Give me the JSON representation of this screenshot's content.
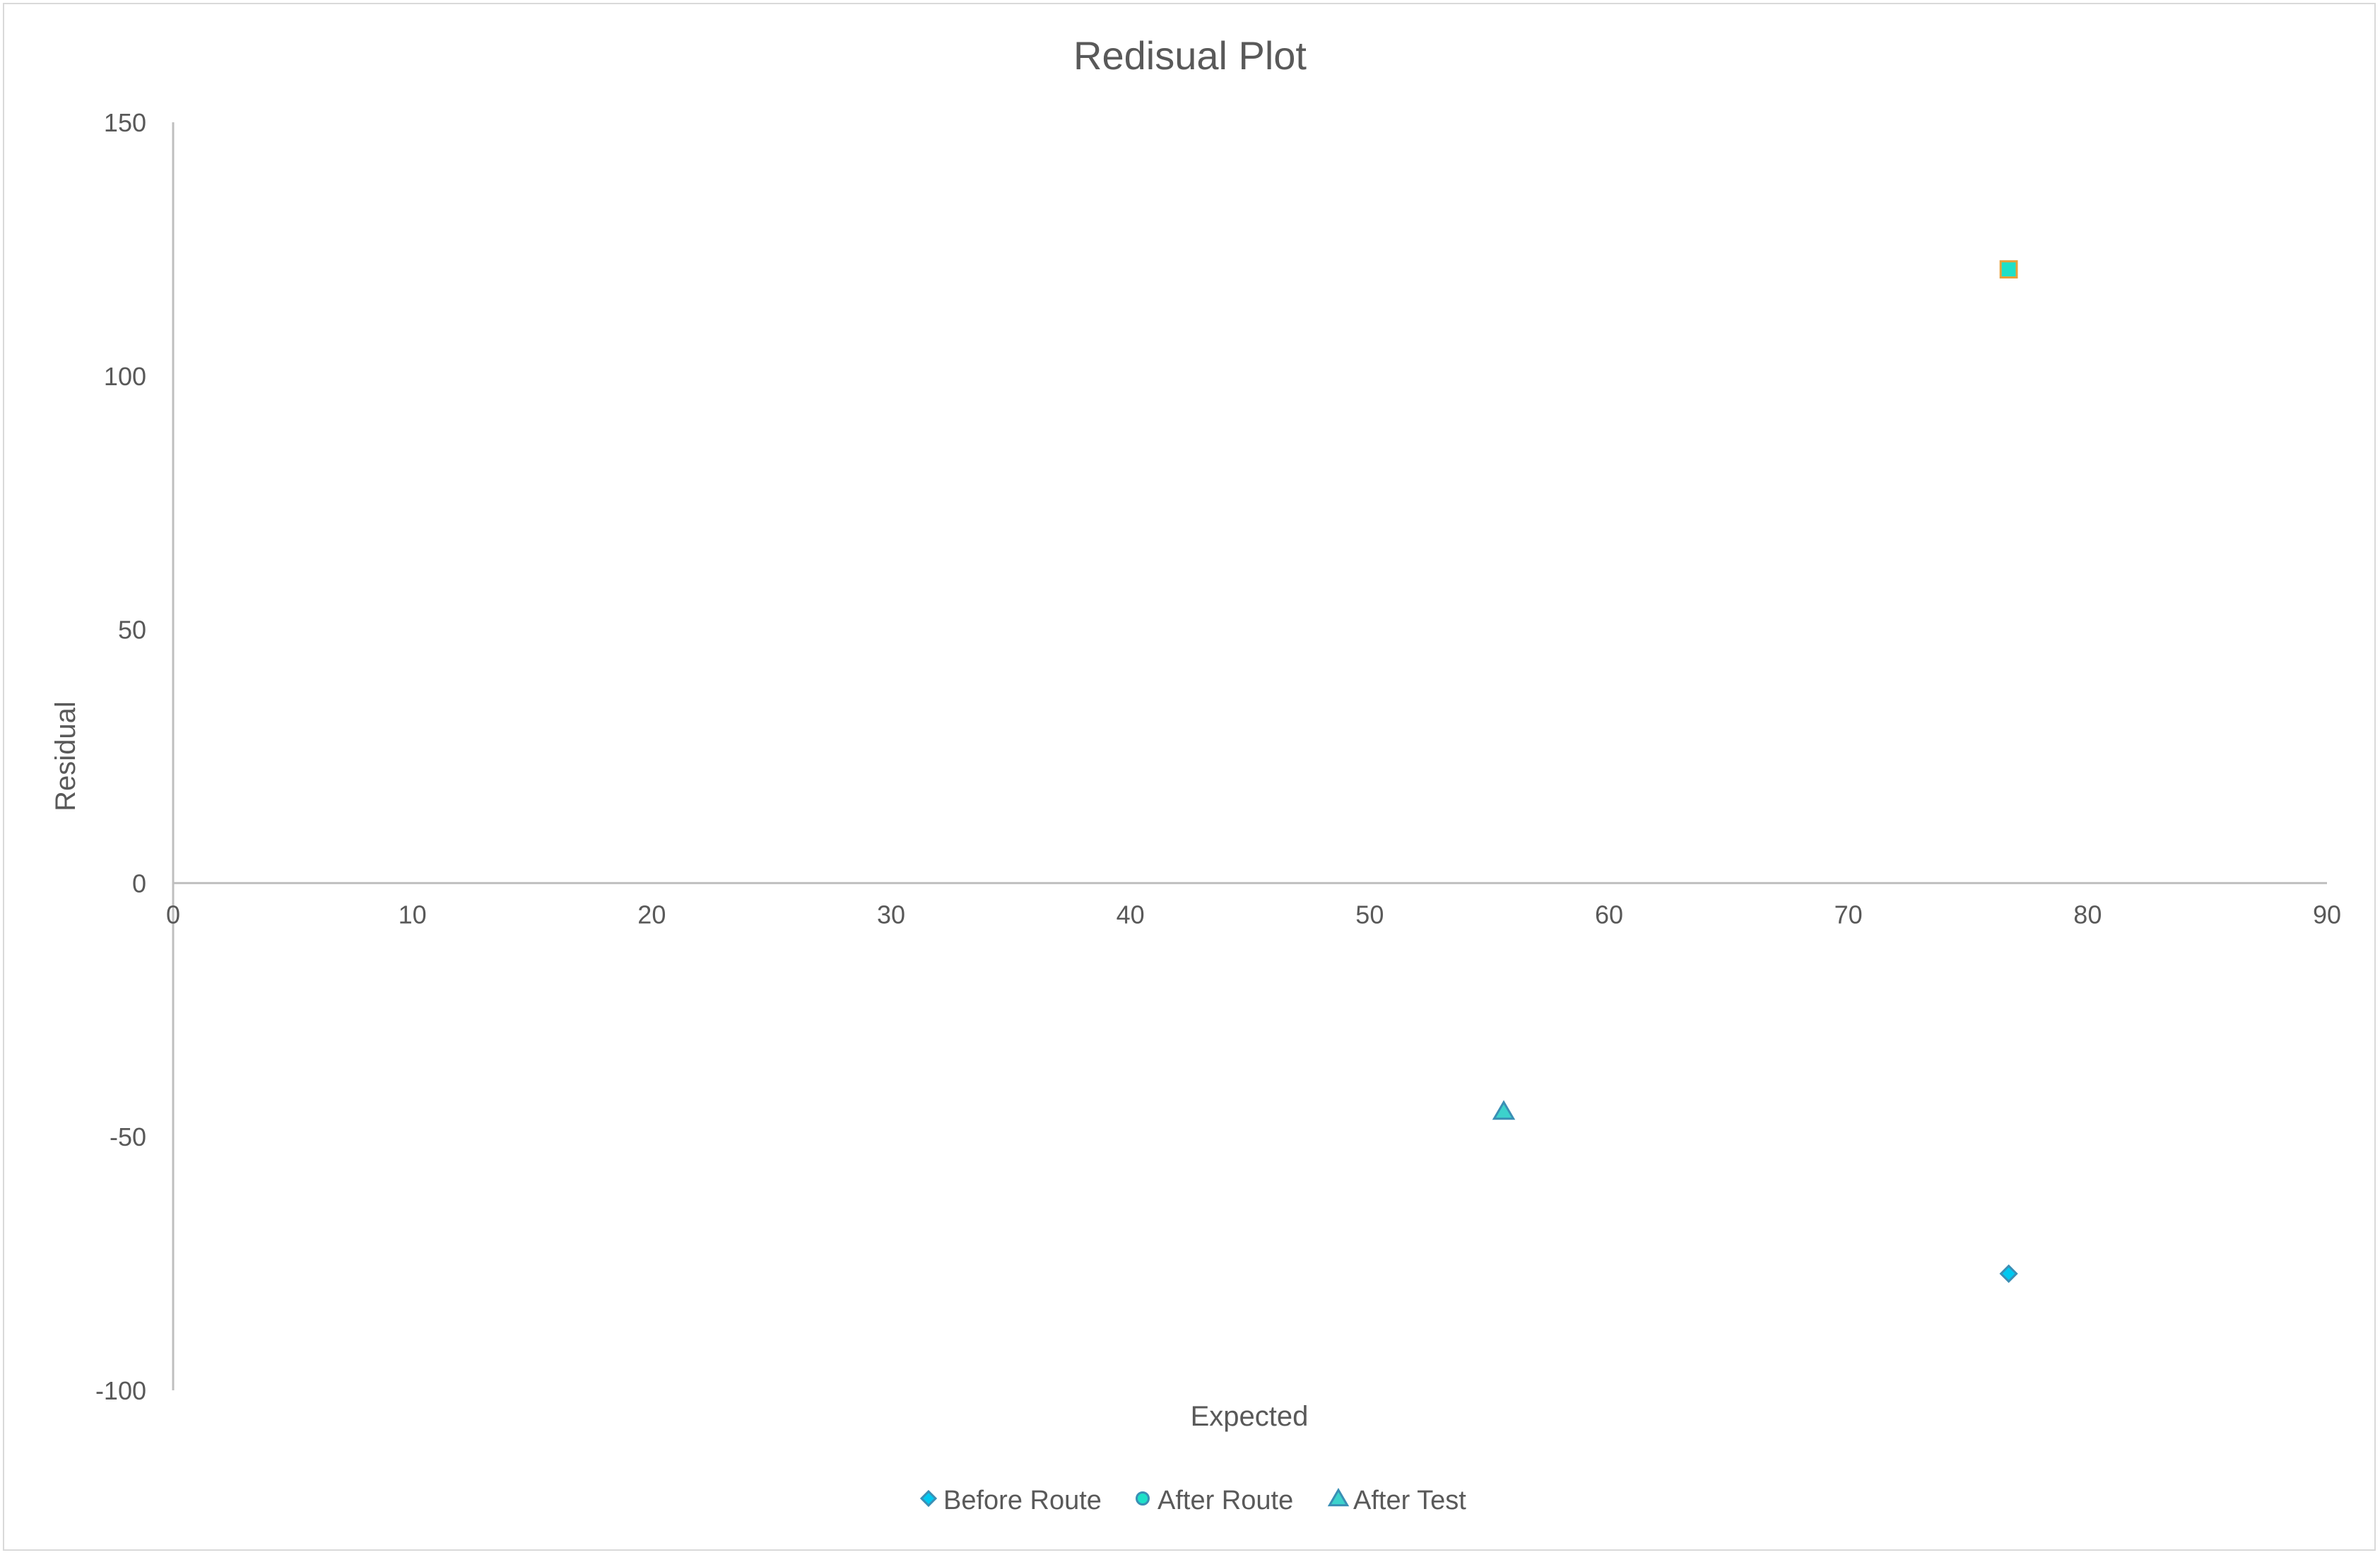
{
  "chart_data": {
    "type": "scatter",
    "title": "Redisual Plot",
    "xlabel": "Expected",
    "ylabel": "Residual",
    "xlim": [
      0,
      90
    ],
    "ylim": [
      -100,
      150
    ],
    "x_ticks": [
      0,
      10,
      20,
      30,
      40,
      50,
      60,
      70,
      80,
      90
    ],
    "y_ticks": [
      150,
      100,
      50,
      0,
      -50,
      -100
    ],
    "grid": false,
    "legend_position": "bottom",
    "series": [
      {
        "name": "Before Route",
        "marker": "diamond",
        "color": "#00c8f0",
        "points": [
          {
            "x": 76.7,
            "y": -77
          }
        ]
      },
      {
        "name": "After Route",
        "marker": "circle",
        "color": "#1ee0c8",
        "points": [
          {
            "x": 76.7,
            "y": 121
          }
        ]
      },
      {
        "name": "After Test",
        "marker": "triangle",
        "color": "#3cd2cc",
        "points": [
          {
            "x": 55.6,
            "y": -45
          }
        ]
      }
    ],
    "overlap_marker": {
      "marker": "square",
      "color": "#1ee0c8",
      "border": "#e8a03a"
    }
  }
}
